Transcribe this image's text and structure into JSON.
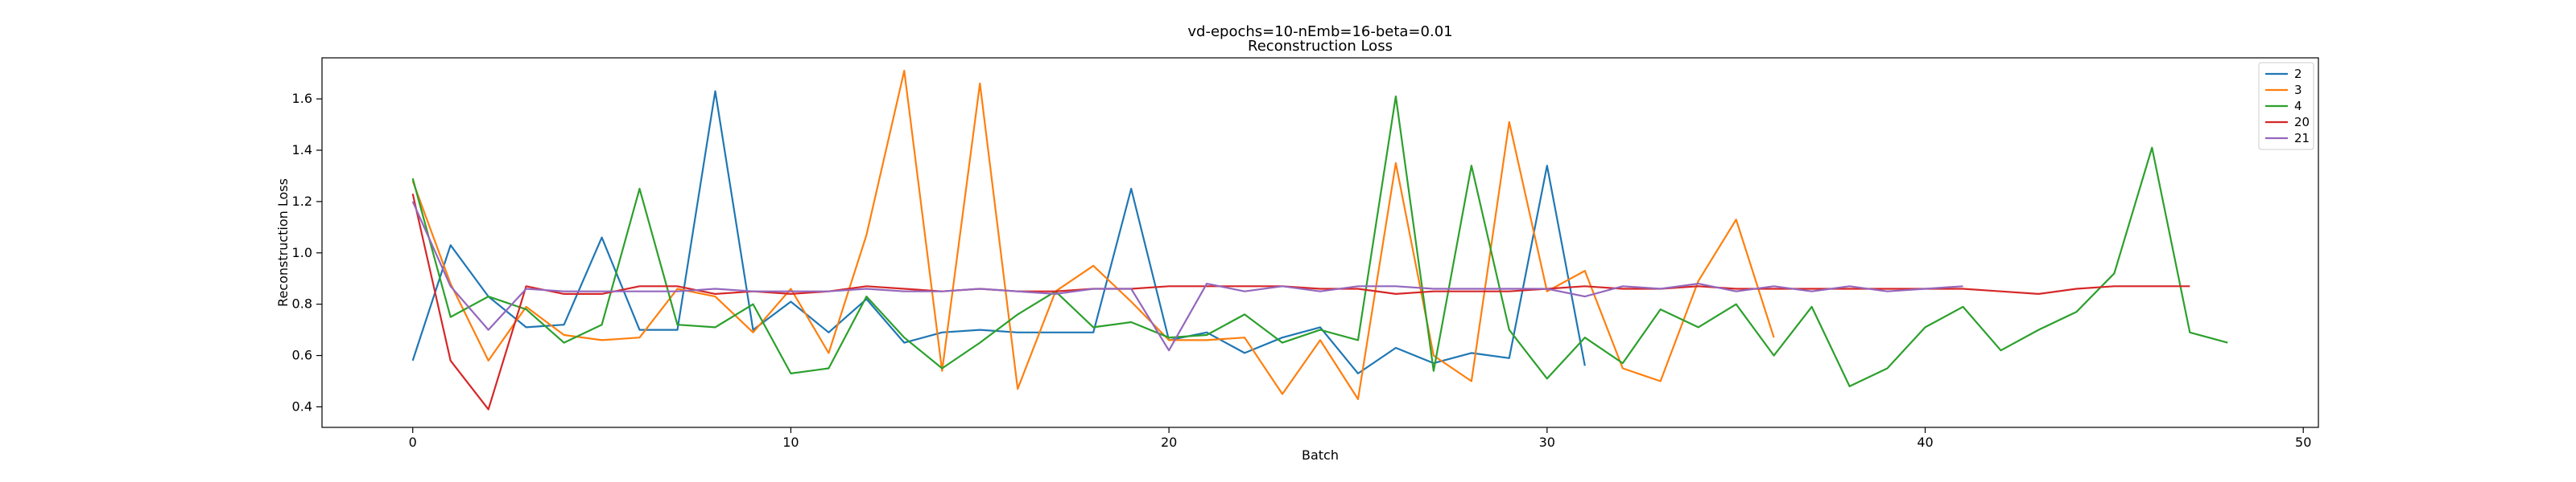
{
  "chart_data": {
    "type": "line",
    "title": "vd-epochs=10-nEmb=16-beta=0.01",
    "subtitle": "Reconstruction Loss",
    "xlabel": "Batch",
    "ylabel": "Reconstruction Loss",
    "xlim": [
      -2.4,
      50.4
    ],
    "ylim": [
      0.32,
      1.76
    ],
    "xticks": [
      0,
      10,
      20,
      30,
      40,
      50
    ],
    "yticks": [
      0.4,
      0.6,
      0.8,
      1.0,
      1.2,
      1.4,
      1.6
    ],
    "ytick_labels": [
      "0.4",
      "0.6",
      "0.8",
      "1.0",
      "1.2",
      "1.4",
      "1.6"
    ],
    "grid": false,
    "legend_position": "top-right",
    "series": [
      {
        "name": "2",
        "color": "#1f77b4",
        "values": [
          0.58,
          1.03,
          0.83,
          0.71,
          0.72,
          1.06,
          0.7,
          0.7,
          1.63,
          0.7,
          0.81,
          0.69,
          0.82,
          0.65,
          0.69,
          0.7,
          0.69,
          0.69,
          0.69,
          1.25,
          0.66,
          0.69,
          0.61,
          0.67,
          0.71,
          0.53,
          0.63,
          0.57,
          0.61,
          0.59,
          1.34,
          0.56
        ]
      },
      {
        "name": "3",
        "color": "#ff7f0e",
        "values": [
          1.28,
          0.88,
          0.58,
          0.79,
          0.68,
          0.66,
          0.67,
          0.86,
          0.83,
          0.69,
          0.86,
          0.61,
          1.07,
          1.71,
          0.54,
          1.66,
          0.47,
          0.85,
          0.95,
          0.81,
          0.66,
          0.66,
          0.67,
          0.45,
          0.66,
          0.43,
          1.35,
          0.6,
          0.5,
          1.51,
          0.85,
          0.93,
          0.55,
          0.5,
          0.89,
          1.13,
          0.67
        ]
      },
      {
        "name": "4",
        "color": "#2ca02c",
        "values": [
          1.29,
          0.75,
          0.83,
          0.78,
          0.65,
          0.72,
          1.25,
          0.72,
          0.71,
          0.8,
          0.53,
          0.55,
          0.83,
          0.67,
          0.55,
          0.65,
          0.76,
          0.85,
          0.71,
          0.73,
          0.67,
          0.68,
          0.76,
          0.65,
          0.7,
          0.66,
          1.61,
          0.54,
          1.34,
          0.7,
          0.51,
          0.67,
          0.57,
          0.78,
          0.71,
          0.8,
          0.6,
          0.79,
          0.48,
          0.55,
          0.71,
          0.79,
          0.62,
          0.7,
          0.77,
          0.92,
          1.41,
          0.69,
          0.65
        ]
      },
      {
        "name": "20",
        "color": "#d62728",
        "values": [
          1.23,
          0.58,
          0.39,
          0.87,
          0.84,
          0.84,
          0.87,
          0.87,
          0.84,
          0.85,
          0.84,
          0.85,
          0.87,
          0.86,
          0.85,
          0.86,
          0.85,
          0.85,
          0.86,
          0.86,
          0.87,
          0.87,
          0.87,
          0.87,
          0.86,
          0.86,
          0.84,
          0.85,
          0.85,
          0.85,
          0.86,
          0.87,
          0.86,
          0.86,
          0.87,
          0.86,
          0.86,
          0.86,
          0.86,
          0.86,
          0.86,
          0.86,
          0.85,
          0.84,
          0.86,
          0.87,
          0.87,
          0.87
        ]
      },
      {
        "name": "21",
        "color": "#9467bd",
        "values": [
          1.2,
          0.87,
          0.7,
          0.86,
          0.85,
          0.85,
          0.85,
          0.85,
          0.86,
          0.85,
          0.85,
          0.85,
          0.86,
          0.85,
          0.85,
          0.86,
          0.85,
          0.84,
          0.86,
          0.86,
          0.62,
          0.88,
          0.85,
          0.87,
          0.85,
          0.87,
          0.87,
          0.86,
          0.86,
          0.86,
          0.86,
          0.83,
          0.87,
          0.86,
          0.88,
          0.85,
          0.87,
          0.85,
          0.87,
          0.85,
          0.86,
          0.87
        ]
      }
    ]
  }
}
